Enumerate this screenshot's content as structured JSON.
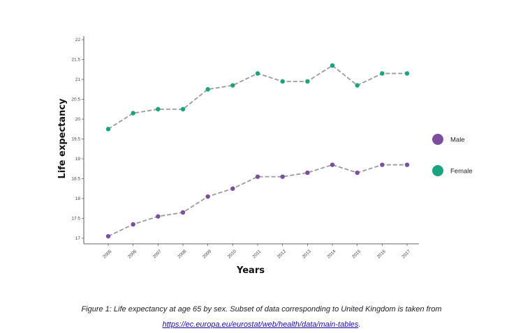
{
  "chart_data": {
    "type": "line",
    "xlabel": "Years",
    "ylabel": "Life expectancy",
    "x": [
      "2005",
      "2006",
      "2007",
      "2008",
      "2009",
      "2010",
      "2011",
      "2012",
      "2013",
      "2014",
      "2015",
      "2016",
      "2017"
    ],
    "yticks": [
      "17",
      "17.5",
      "18",
      "18.5",
      "19",
      "19.5",
      "20",
      "20.5",
      "21",
      "21.5",
      "22"
    ],
    "ylim": [
      17,
      22
    ],
    "series": [
      {
        "name": "Male",
        "color": "#7b4f9e",
        "values": [
          17.05,
          17.35,
          17.55,
          17.65,
          18.05,
          18.25,
          18.55,
          18.55,
          18.65,
          18.85,
          18.65,
          18.85,
          18.85
        ]
      },
      {
        "name": "Female",
        "color": "#1aa37f",
        "values": [
          19.75,
          20.15,
          20.25,
          20.25,
          20.75,
          20.85,
          21.15,
          20.95,
          20.95,
          21.35,
          20.85,
          21.15,
          21.15
        ]
      }
    ],
    "line_style": "dashed",
    "line_color": "#9a9a9a",
    "legend_position": "right"
  },
  "caption": {
    "text": "Figure 1: Life expectancy at age 65 by sex. Subset of data corresponding to United Kingdom is taken from",
    "link": "https://ec.europa.eu/eurostat/web/health/data/main-tables",
    "end": "."
  }
}
